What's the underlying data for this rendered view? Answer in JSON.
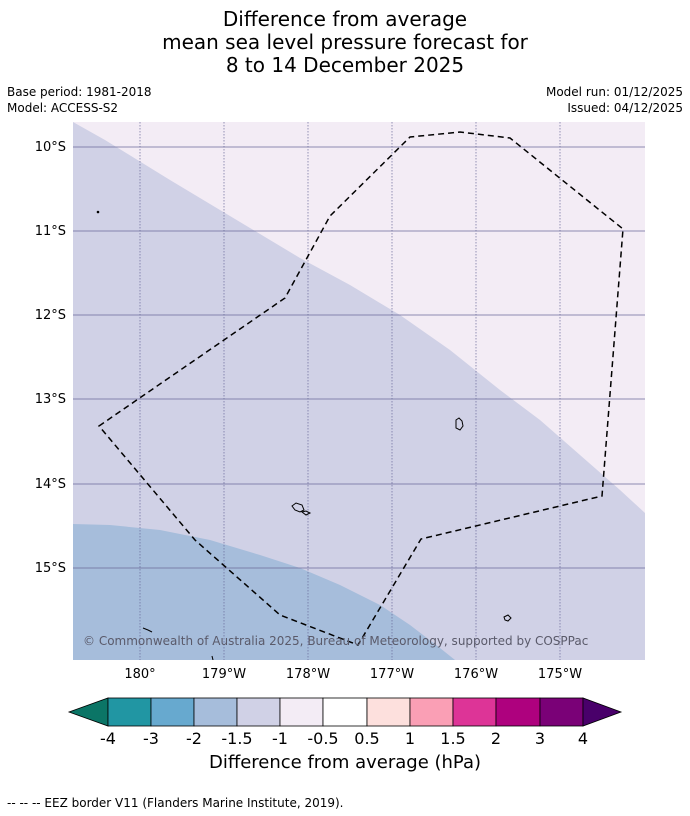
{
  "title": {
    "line1": "Difference from average",
    "line2": "mean sea level pressure forecast for",
    "line3": "8 to 14 December 2025"
  },
  "meta": {
    "base_period": "Base period: 1981-2018",
    "model": "Model: ACCESS-S2",
    "model_run": "Model run: 01/12/2025",
    "issued": "Issued: 04/12/2025"
  },
  "map": {
    "lat_labels": [
      "10°S",
      "11°S",
      "12°S",
      "13°S",
      "14°S",
      "15°S"
    ],
    "lon_labels": [
      "180°",
      "179°W",
      "178°W",
      "177°W",
      "176°W",
      "175°W"
    ],
    "copyright": "© Commonwealth of Australia 2025, Bureau of Meteorology, supported by COSPPac",
    "colors": {
      "band_m1_to_m05": "#f3ecf5",
      "band_m15_to_m1": "#d0d1e6",
      "band_m2_to_m15": "#a6bddb",
      "eez_line": "#000000"
    }
  },
  "colorbar": {
    "ticks": [
      "-4",
      "-3",
      "-2",
      "-1.5",
      "-1",
      "-0.5",
      "0.5",
      "1",
      "1.5",
      "2",
      "3",
      "4"
    ],
    "title": "Difference from average (hPa)",
    "colors": [
      "#0b7566",
      "#2196a3",
      "#67a9cf",
      "#a6bddb",
      "#d0d1e6",
      "#f3ecf5",
      "#ffffff",
      "#fde0dd",
      "#fa9fb5",
      "#dd3497",
      "#ae017e",
      "#7a0177",
      "#49006a"
    ]
  },
  "footer": "--  --  -- EEZ border V11 (Flanders Marine Institute, 2019)."
}
